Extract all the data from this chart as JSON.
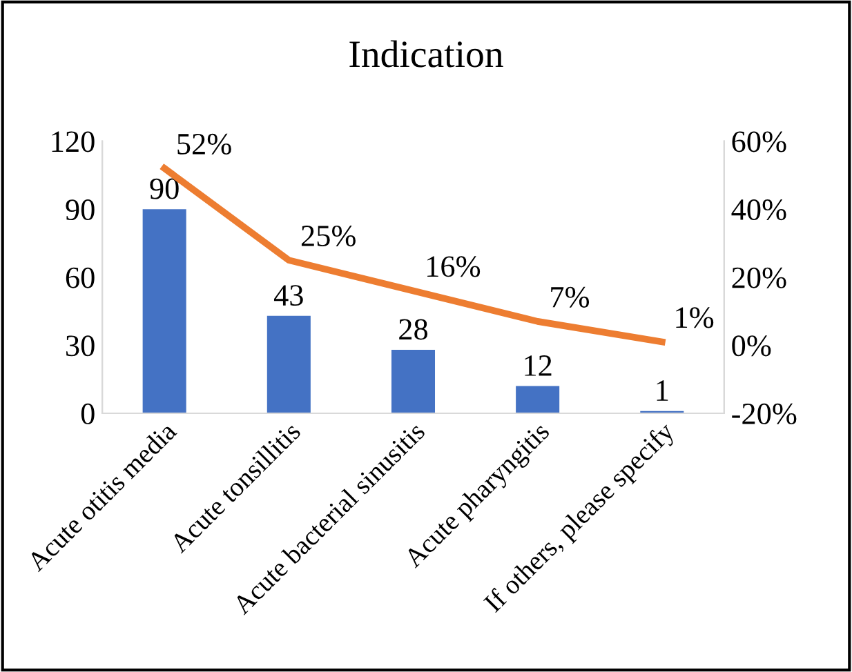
{
  "chart_data": {
    "type": "bar",
    "title": "Indication",
    "categories": [
      "Acute otitis media",
      "Acute tonsillitis",
      "Acute bacterial sinusitis",
      "Acute pharyngitis",
      "If others, please specify"
    ],
    "series": [
      {
        "color": "#4472c4",
        "values": [
          90,
          43,
          28,
          12,
          1
        ],
        "value_labels": [
          "90",
          "43",
          "28",
          "12",
          "1"
        ]
      },
      {
        "type": "line",
        "axis": "y2",
        "color": "#ed7d31",
        "values": [
          52,
          25,
          16,
          7,
          1
        ],
        "value_labels": [
          "52%",
          "25%",
          "16%",
          "7%",
          "1%"
        ]
      }
    ],
    "ylim": [
      0,
      120
    ],
    "yticks": [
      0,
      30,
      60,
      90,
      120
    ],
    "y2lim": [
      -20,
      60
    ],
    "y2ticks": [
      {
        "value": -20,
        "label": "-20%"
      },
      {
        "value": 0,
        "label": "0%"
      },
      {
        "value": 20,
        "label": "20%"
      },
      {
        "value": 40,
        "label": "40%"
      },
      {
        "value": 60,
        "label": "60%"
      }
    ],
    "grid": false,
    "marker": "none",
    "line_style": "solid"
  }
}
